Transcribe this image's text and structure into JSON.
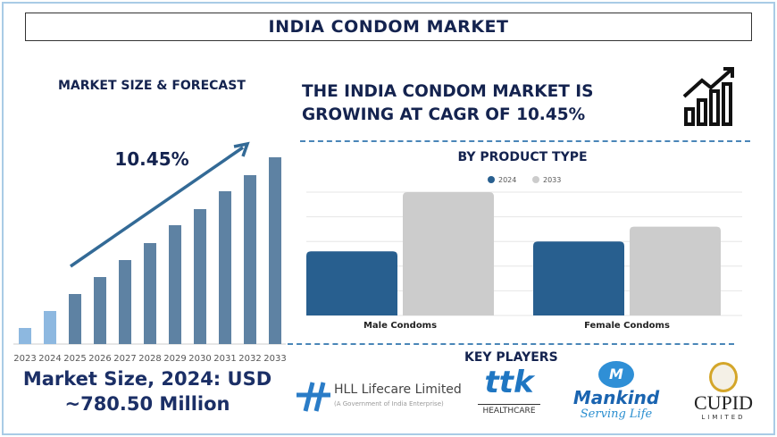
{
  "title": "INDIA CONDOM MARKET",
  "left": {
    "heading": "MARKET SIZE & FORECAST",
    "cagr_label": "10.45%",
    "market_size_line1": "Market Size, 2024: USD",
    "market_size_line2": "~780.50 Million"
  },
  "headline": {
    "line1": "THE INDIA CONDOM MARKET IS",
    "line2": "GROWING AT CAGR OF 10.45%"
  },
  "key_players": {
    "heading": "KEY PLAYERS",
    "hll": {
      "name": "HLL Lifecare Limited",
      "sub": "(A Government of India Enterprise)"
    },
    "ttk": {
      "name": "ttk",
      "sub": "HEALTHCARE"
    },
    "mankind": {
      "name": "Mankind",
      "sub": "Serving Life"
    },
    "cupid": {
      "name": "CUPID",
      "sub": "LIMITED"
    }
  },
  "chart_data": [
    {
      "type": "bar",
      "categories": [
        "2023",
        "2024",
        "2025",
        "2026",
        "2027",
        "2028",
        "2029",
        "2030",
        "2031",
        "2032",
        "2033"
      ],
      "values": [
        18,
        37,
        56,
        75,
        94,
        113,
        133,
        151,
        171,
        189,
        209
      ],
      "annotation": "10.45%",
      "colors": {
        "historical": "#8db8e0",
        "forecast": "#5e82a3",
        "arrow": "#336a96"
      },
      "grid": false
    },
    {
      "type": "bar",
      "title": "BY PRODUCT TYPE",
      "categories": [
        "Male Condoms",
        "Female Condoms"
      ],
      "series": [
        {
          "name": "2024",
          "values": [
            2.6,
            3.0
          ],
          "color": "#285f8f"
        },
        {
          "name": "2033",
          "values": [
            5.0,
            3.6
          ],
          "color": "#cccccc"
        }
      ],
      "ylim": [
        0,
        5
      ],
      "grid": true,
      "legend": "top"
    }
  ]
}
